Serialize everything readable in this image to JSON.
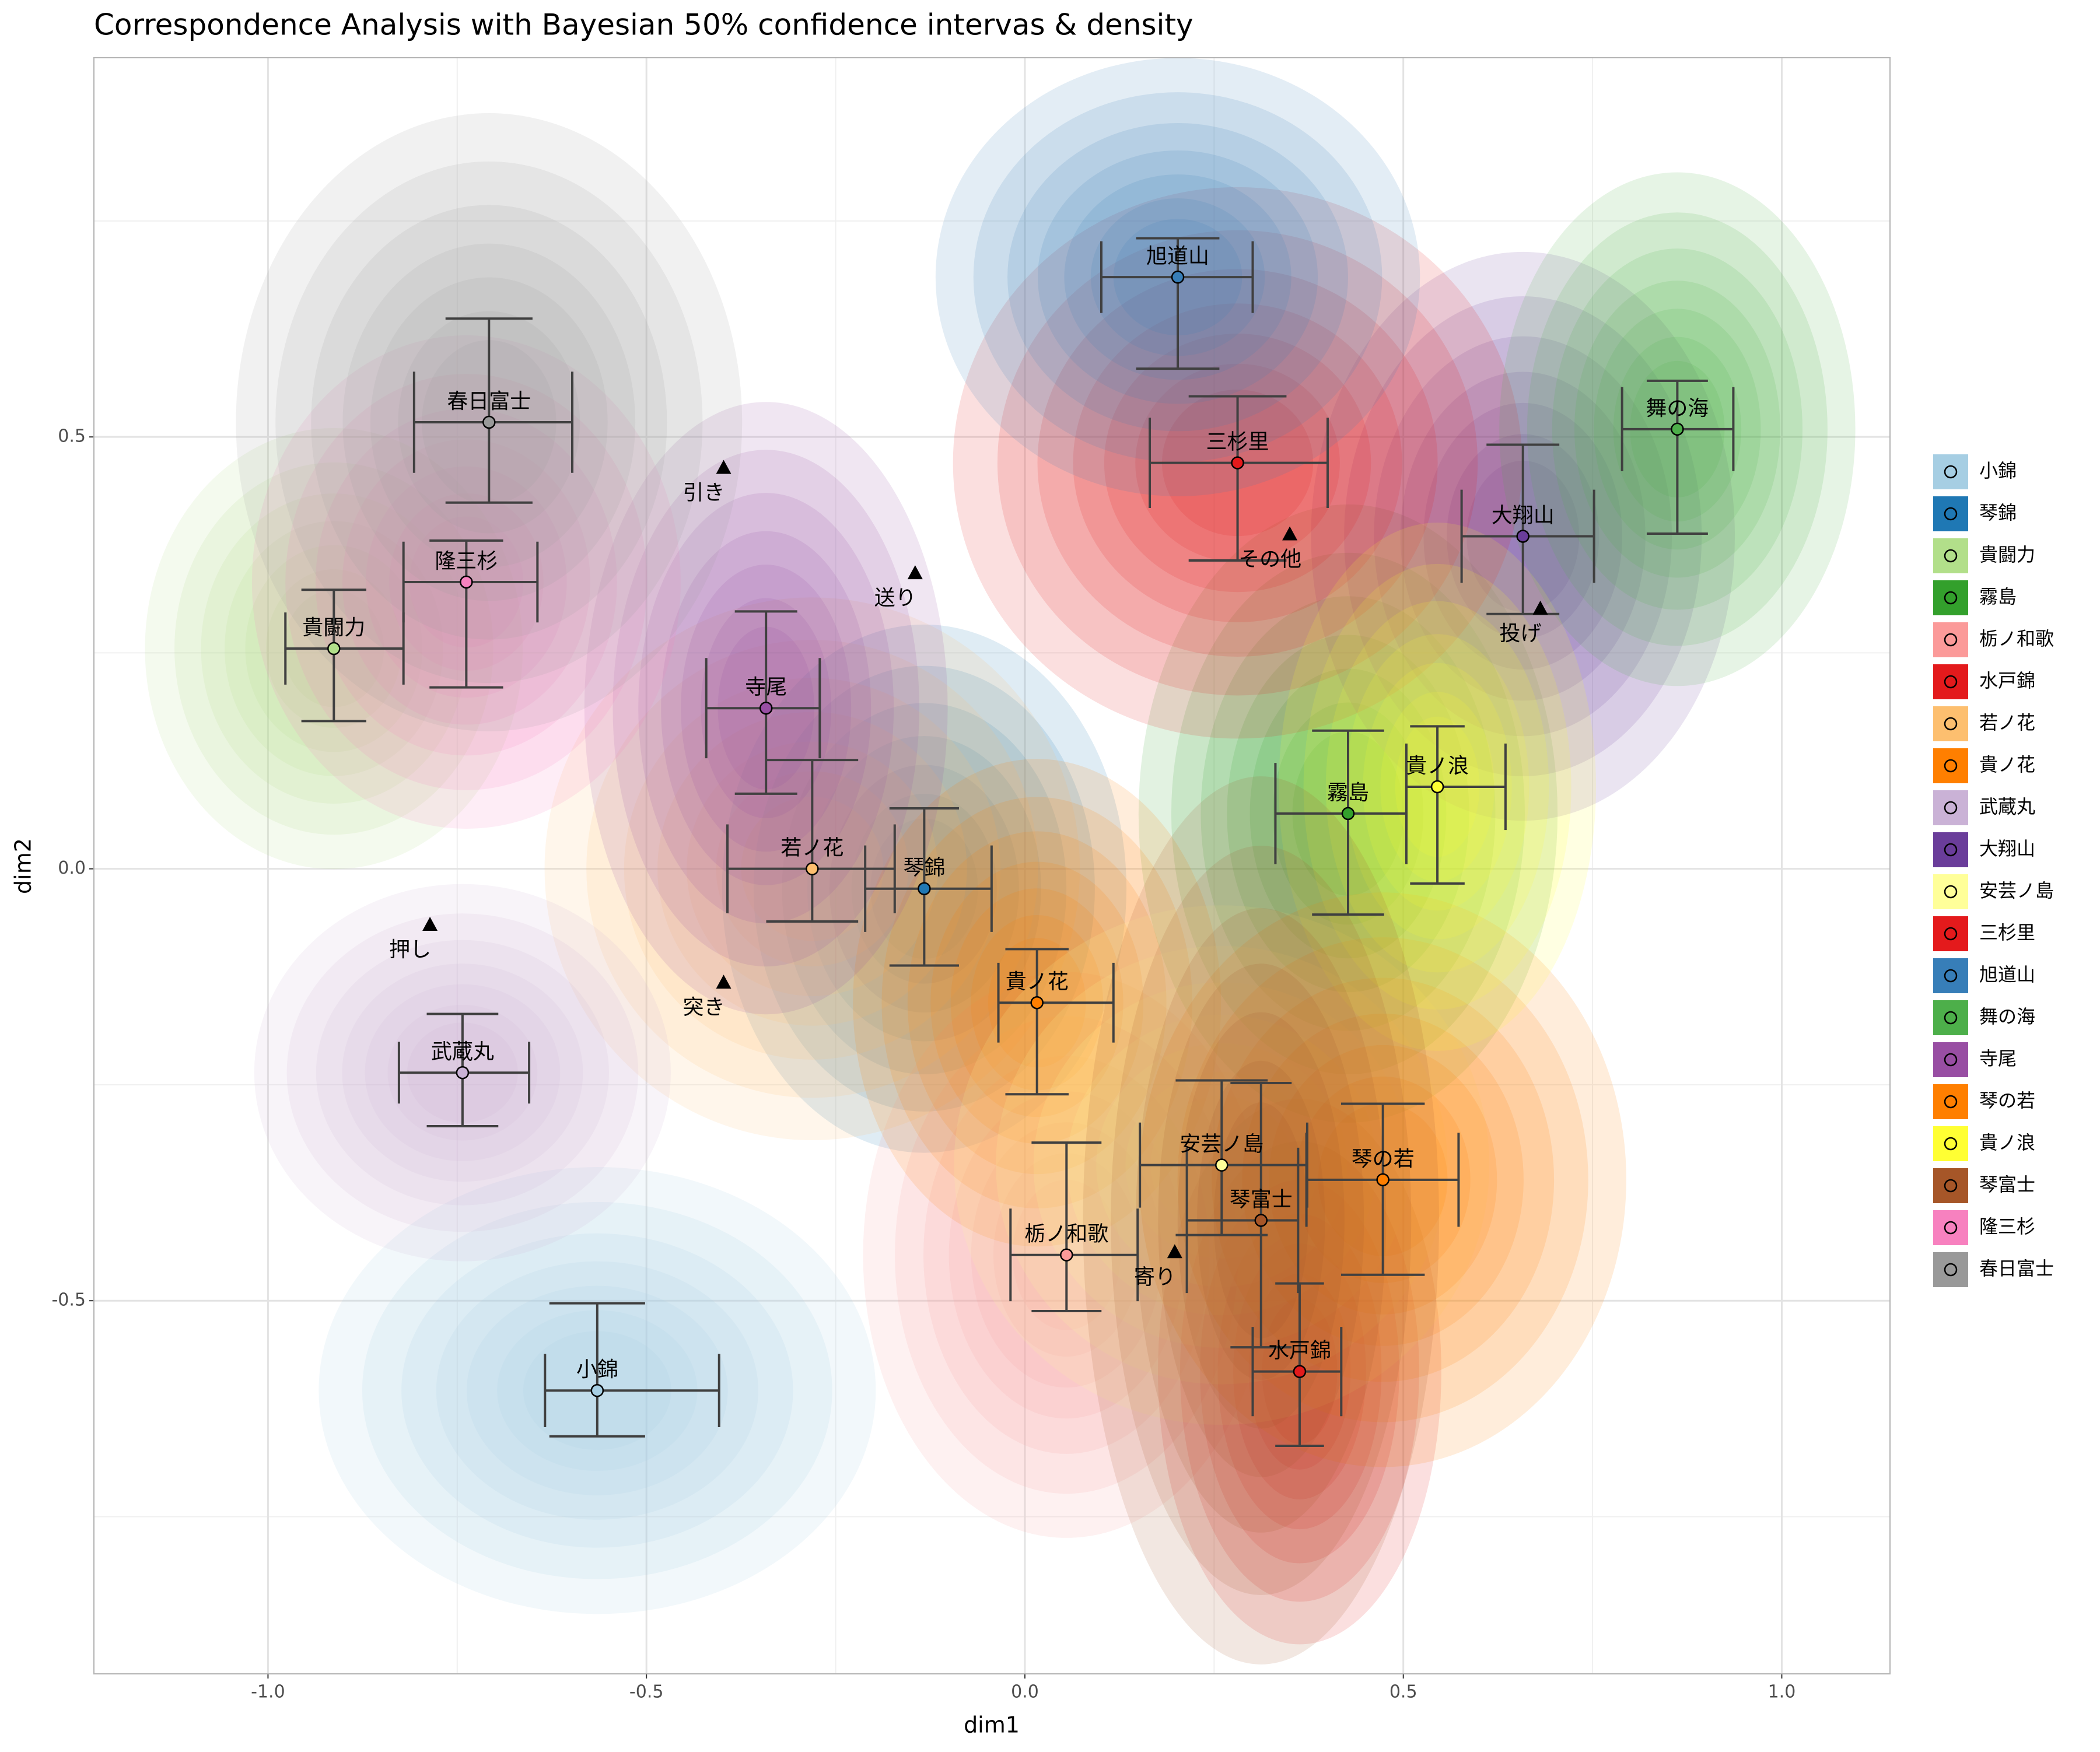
{
  "chart_data": {
    "type": "scatter",
    "title": "Correspondence Analysis with Bayesian 50% confidence intervas & density",
    "x_label": "dim1",
    "y_label": "dim2",
    "xlim": [
      -1.23,
      1.143
    ],
    "ylim": [
      -0.932,
      0.939
    ],
    "xticks": [
      {
        "value": -1,
        "label": "-1.0"
      },
      -0.5,
      {
        "value": 0,
        "label": "0.0"
      },
      0.5,
      {
        "value": 1,
        "label": "1.0"
      }
    ],
    "yticks": [
      -0.5,
      {
        "value": 0,
        "label": "0.0"
      },
      0.5
    ],
    "grid": true,
    "legend": "right",
    "series": [
      {
        "name": "小錦",
        "color": "#a6cee3",
        "x": -0.565,
        "y": -0.604,
        "xci": [
          -0.634,
          -0.404
        ],
        "yci": [
          -0.657,
          -0.503
        ]
      },
      {
        "name": "琴錦",
        "color": "#1f78b4",
        "x": -0.133,
        "y": -0.023,
        "xci": [
          -0.211,
          -0.044
        ],
        "yci": [
          -0.112,
          0.07
        ]
      },
      {
        "name": "貴闘力",
        "color": "#b2df8a",
        "x": -0.913,
        "y": 0.255,
        "xci": [
          -0.977,
          -0.821
        ],
        "yci": [
          0.171,
          0.323
        ]
      },
      {
        "name": "霧島",
        "color": "#33a02c",
        "x": 0.427,
        "y": 0.064,
        "xci": [
          0.331,
          0.504
        ],
        "yci": [
          -0.053,
          0.16
        ]
      },
      {
        "name": "栃ノ和歌",
        "color": "#fb9a99",
        "x": 0.055,
        "y": -0.447,
        "xci": [
          -0.019,
          0.149
        ],
        "yci": [
          -0.512,
          -0.317
        ]
      },
      {
        "name": "水戸錦",
        "color": "#e31a1c",
        "x": 0.363,
        "y": -0.582,
        "xci": [
          0.301,
          0.418
        ],
        "yci": [
          -0.668,
          -0.48
        ]
      },
      {
        "name": "若ノ花",
        "color": "#fdbf6f",
        "x": -0.281,
        "y": 0.0,
        "xci": [
          -0.393,
          -0.172
        ],
        "yci": [
          -0.061,
          0.126
        ]
      },
      {
        "name": "貴ノ花",
        "color": "#ff7f00",
        "x": 0.016,
        "y": -0.155,
        "xci": [
          -0.035,
          0.117
        ],
        "yci": [
          -0.261,
          -0.093
        ]
      },
      {
        "name": "武蔵丸",
        "color": "#cab2d6",
        "x": -0.743,
        "y": -0.236,
        "xci": [
          -0.827,
          -0.655
        ],
        "yci": [
          -0.298,
          -0.168
        ]
      },
      {
        "name": "大翔山",
        "color": "#6a3d9a",
        "x": 0.658,
        "y": 0.385,
        "xci": [
          0.577,
          0.752
        ],
        "yci": [
          0.295,
          0.491
        ]
      },
      {
        "name": "安芸ノ島",
        "color": "#ffff99",
        "x": 0.26,
        "y": -0.343,
        "xci": [
          0.152,
          0.373
        ],
        "yci": [
          -0.424,
          -0.245
        ]
      },
      {
        "name": "三杉里",
        "color": "#e41a1c",
        "x": 0.281,
        "y": 0.47,
        "xci": [
          0.165,
          0.4
        ],
        "yci": [
          0.357,
          0.547
        ]
      },
      {
        "name": "旭道山",
        "color": "#377eb8",
        "x": 0.202,
        "y": 0.685,
        "xci": [
          0.101,
          0.301
        ],
        "yci": [
          0.579,
          0.73
        ]
      },
      {
        "name": "舞の海",
        "color": "#4daf4a",
        "x": 0.862,
        "y": 0.509,
        "xci": [
          0.789,
          0.936
        ],
        "yci": [
          0.388,
          0.565
        ]
      },
      {
        "name": "寺尾",
        "color": "#984ea3",
        "x": -0.342,
        "y": 0.186,
        "xci": [
          -0.421,
          -0.271
        ],
        "yci": [
          0.087,
          0.298
        ]
      },
      {
        "name": "琴の若",
        "color": "#ff7f00",
        "x": 0.473,
        "y": -0.36,
        "xci": [
          0.372,
          0.573
        ],
        "yci": [
          -0.47,
          -0.272
        ]
      },
      {
        "name": "貴ノ浪",
        "color": "#ffff33",
        "x": 0.545,
        "y": 0.095,
        "xci": [
          0.504,
          0.635
        ],
        "yci": [
          -0.017,
          0.165
        ]
      },
      {
        "name": "琴富士",
        "color": "#a65628",
        "x": 0.312,
        "y": -0.407,
        "xci": [
          0.214,
          0.361
        ],
        "yci": [
          -0.554,
          -0.248
        ]
      },
      {
        "name": "隆三杉",
        "color": "#f781bf",
        "x": -0.738,
        "y": 0.332,
        "xci": [
          -0.821,
          -0.644
        ],
        "yci": [
          0.21,
          0.38
        ]
      },
      {
        "name": "春日富士",
        "color": "#999999",
        "x": -0.708,
        "y": 0.517,
        "xci": [
          -0.807,
          -0.598
        ],
        "yci": [
          0.424,
          0.637
        ]
      }
    ],
    "columns": {
      "names": [
        "引き",
        "送り",
        "その他",
        "投げ",
        "押し",
        "突き",
        "寄り"
      ],
      "x": [
        -0.398,
        -0.145,
        0.35,
        0.681,
        -0.786,
        -0.398,
        0.198
      ],
      "y": [
        0.464,
        0.342,
        0.387,
        0.301,
        -0.065,
        -0.132,
        -0.444
      ],
      "color": "#000000"
    }
  }
}
